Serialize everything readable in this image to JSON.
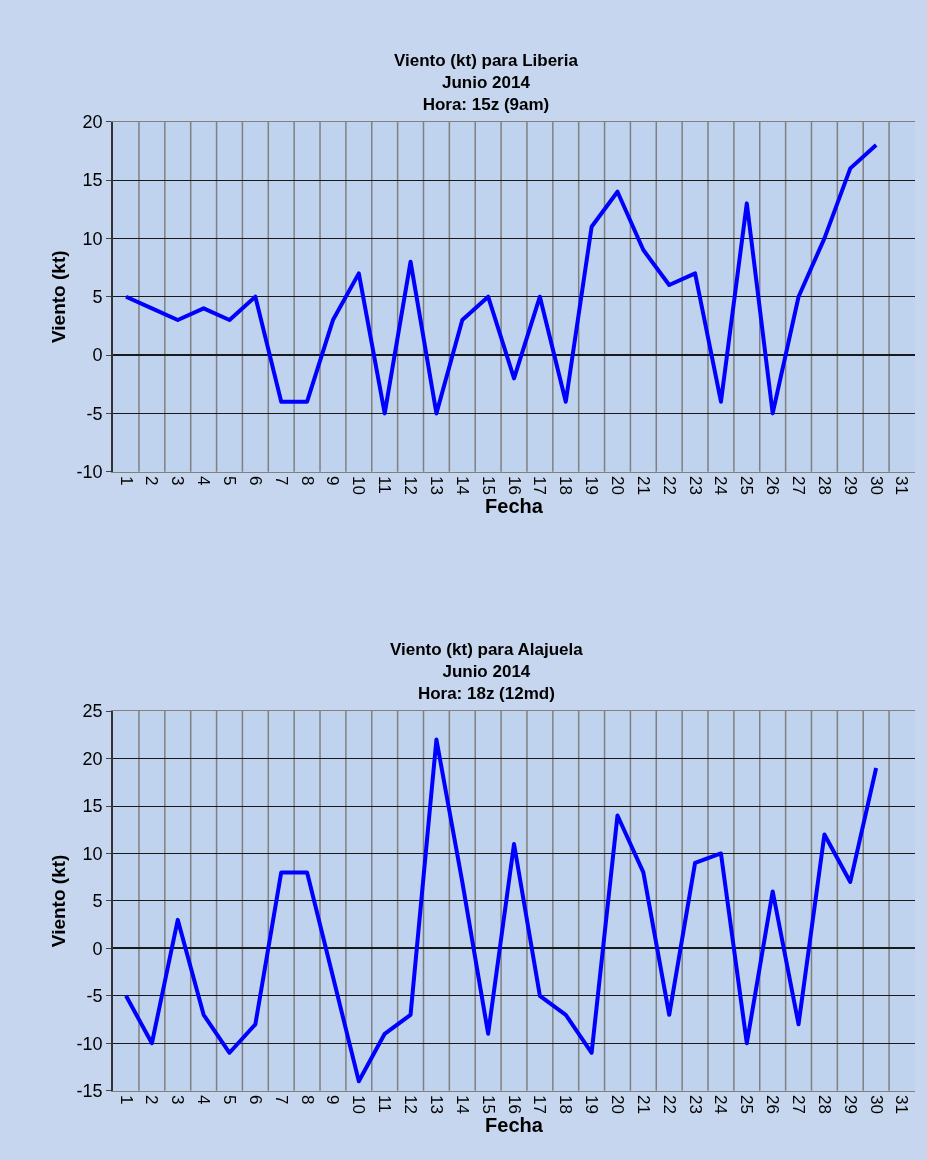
{
  "chart_data": [
    {
      "type": "line",
      "title": "Viento (kt) para Liberia\nJunio 2014\nHora: 15z (9am)",
      "xlabel": "Fecha",
      "ylabel": "Viento (kt)",
      "categories": [
        "1",
        "2",
        "3",
        "4",
        "5",
        "6",
        "7",
        "8",
        "9",
        "10",
        "11",
        "12",
        "13",
        "14",
        "15",
        "16",
        "17",
        "18",
        "19",
        "20",
        "21",
        "22",
        "23",
        "24",
        "25",
        "26",
        "27",
        "28",
        "29",
        "30",
        "31"
      ],
      "series": [
        {
          "color": "#0000ff",
          "values": [
            5,
            4,
            3,
            4,
            3,
            5,
            -4,
            -4,
            3,
            7,
            -5,
            8,
            -5,
            3,
            5,
            -2,
            5,
            -4,
            11,
            14,
            9,
            6,
            7,
            -4,
            13,
            -5,
            5,
            10,
            16,
            18,
            null
          ]
        }
      ],
      "ylim": [
        -10,
        20
      ],
      "yticks": [
        -10,
        -5,
        0,
        5,
        10,
        15,
        20
      ],
      "grid": true,
      "marker": "none",
      "line_style": "solid"
    },
    {
      "type": "line",
      "title": "Viento (kt) para Alajuela\nJunio 2014\nHora: 18z (12md)",
      "xlabel": "Fecha",
      "ylabel": "Viento (kt)",
      "categories": [
        "1",
        "2",
        "3",
        "4",
        "5",
        "6",
        "7",
        "8",
        "9",
        "10",
        "11",
        "12",
        "13",
        "14",
        "15",
        "16",
        "17",
        "18",
        "19",
        "20",
        "21",
        "22",
        "23",
        "24",
        "25",
        "26",
        "27",
        "28",
        "29",
        "30",
        "31"
      ],
      "series": [
        {
          "color": "#0000ff",
          "values": [
            -5,
            -10,
            3,
            -7,
            -11,
            -8,
            8,
            8,
            -3,
            -14,
            -9,
            -7,
            22,
            7,
            -9,
            11,
            -5,
            -7,
            -11,
            14,
            8,
            -7,
            9,
            10,
            -10,
            6,
            -8,
            12,
            7,
            19,
            null
          ]
        }
      ],
      "ylim": [
        -15,
        25
      ],
      "yticks": [
        -15,
        -10,
        -5,
        0,
        5,
        10,
        15,
        20,
        25
      ],
      "grid": true,
      "marker": "none",
      "line_style": "solid"
    }
  ]
}
